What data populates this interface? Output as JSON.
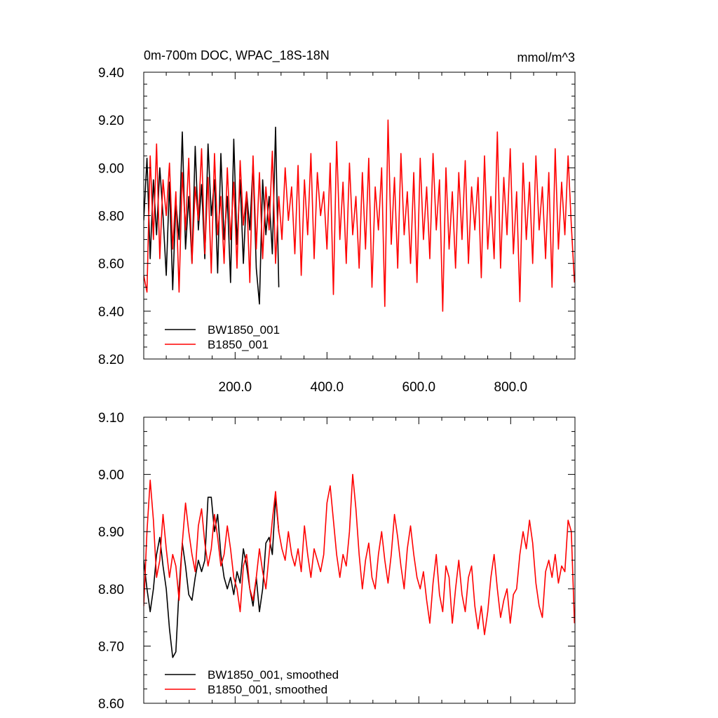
{
  "chart_data": [
    {
      "type": "line",
      "title": "0m-700m DOC, WPAC_18S-18N",
      "units": "mmol/m^3",
      "xlabel": "",
      "ylabel": "",
      "xlim": [
        1,
        940
      ],
      "ylim": [
        8.2,
        9.4
      ],
      "xticks": [
        "200.0",
        "400.0",
        "600.0",
        "800.0"
      ],
      "yticks": [
        "8.20",
        "8.40",
        "8.60",
        "8.80",
        "9.00",
        "9.20",
        "9.40"
      ],
      "legend_position": "bottom-left",
      "series": [
        {
          "name": "BW1850_001",
          "color": "#000000",
          "x": [
            1,
            8,
            15,
            22,
            29,
            36,
            43,
            50,
            57,
            64,
            71,
            78,
            85,
            92,
            99,
            106,
            113,
            120,
            127,
            134,
            141,
            148,
            155,
            162,
            169,
            176,
            183,
            190,
            197,
            204,
            211,
            218,
            225,
            232,
            239,
            246,
            253,
            260,
            267,
            274,
            281,
            288,
            295
          ],
          "values": [
            8.78,
            9.04,
            8.62,
            8.95,
            8.72,
            9.0,
            8.8,
            8.55,
            8.94,
            8.49,
            8.86,
            8.7,
            9.15,
            8.66,
            8.88,
            8.6,
            9.09,
            8.74,
            8.93,
            8.62,
            9.1,
            8.8,
            8.95,
            8.56,
            9.06,
            8.7,
            8.88,
            8.52,
            9.12,
            8.68,
            8.95,
            8.6,
            8.9,
            8.74,
            9.02,
            8.58,
            8.43,
            8.95,
            8.72,
            8.88,
            8.64,
            9.17,
            8.5
          ]
        },
        {
          "name": "B1850_001",
          "color": "#ff0000",
          "x": [
            1,
            8,
            15,
            22,
            29,
            36,
            43,
            50,
            57,
            64,
            71,
            78,
            85,
            92,
            99,
            106,
            113,
            120,
            127,
            134,
            141,
            148,
            155,
            162,
            169,
            176,
            183,
            190,
            197,
            204,
            211,
            218,
            225,
            232,
            239,
            246,
            253,
            260,
            267,
            274,
            281,
            288,
            295,
            302,
            309,
            316,
            323,
            330,
            337,
            344,
            351,
            358,
            365,
            372,
            379,
            386,
            393,
            400,
            407,
            414,
            421,
            428,
            435,
            442,
            449,
            456,
            463,
            470,
            477,
            484,
            491,
            498,
            505,
            512,
            519,
            526,
            533,
            540,
            547,
            554,
            561,
            568,
            575,
            582,
            589,
            596,
            603,
            610,
            617,
            624,
            631,
            638,
            645,
            652,
            659,
            666,
            673,
            680,
            687,
            694,
            701,
            708,
            715,
            722,
            729,
            736,
            743,
            750,
            757,
            764,
            771,
            778,
            785,
            792,
            799,
            806,
            813,
            820,
            827,
            834,
            841,
            848,
            855,
            862,
            869,
            876,
            883,
            890,
            897,
            904,
            911,
            918,
            925,
            932,
            939
          ],
          "values": [
            8.55,
            8.48,
            9.05,
            8.7,
            9.1,
            8.62,
            8.95,
            8.8,
            9.02,
            8.66,
            8.9,
            8.48,
            8.98,
            8.74,
            9.04,
            8.6,
            8.92,
            8.78,
            9.08,
            8.64,
            8.96,
            8.56,
            9.06,
            8.72,
            8.88,
            8.6,
            9.0,
            8.7,
            8.94,
            8.58,
            9.03,
            8.76,
            8.9,
            8.52,
            9.05,
            8.66,
            8.98,
            8.62,
            8.92,
            8.74,
            9.07,
            8.6,
            8.88,
            8.7,
            9.0,
            8.78,
            8.92,
            8.64,
            9.01,
            8.55,
            8.95,
            8.72,
            9.06,
            8.62,
            8.98,
            8.8,
            8.9,
            8.66,
            9.02,
            8.47,
            9.11,
            8.7,
            8.94,
            8.6,
            9.02,
            8.72,
            8.88,
            8.58,
            8.98,
            8.66,
            9.04,
            8.5,
            8.92,
            8.74,
            9.0,
            8.42,
            9.2,
            8.68,
            8.96,
            8.58,
            9.06,
            8.72,
            8.9,
            8.6,
            8.98,
            8.52,
            9.04,
            8.7,
            8.92,
            8.62,
            9.06,
            8.74,
            8.95,
            8.4,
            9.0,
            8.66,
            8.9,
            8.58,
            8.98,
            8.7,
            9.03,
            8.6,
            8.92,
            8.74,
            8.96,
            8.54,
            9.05,
            8.66,
            8.88,
            8.62,
            9.15,
            8.58,
            8.96,
            8.72,
            9.08,
            8.64,
            8.9,
            8.44,
            9.02,
            8.7,
            8.94,
            8.6,
            9.05,
            8.74,
            8.92,
            8.62,
            8.98,
            8.5,
            9.08,
            8.66,
            8.94,
            8.72,
            9.05,
            8.76,
            8.52
          ]
        }
      ]
    },
    {
      "type": "line",
      "title": "",
      "xlabel": "",
      "ylabel": "",
      "xlim": [
        1,
        940
      ],
      "ylim": [
        8.6,
        9.1
      ],
      "yticks": [
        "8.60",
        "8.70",
        "8.80",
        "8.90",
        "9.00",
        "9.10"
      ],
      "legend_position": "bottom-left",
      "series": [
        {
          "name": "BW1850_001, smoothed",
          "color": "#000000",
          "x": [
            1,
            8,
            15,
            22,
            29,
            36,
            43,
            50,
            57,
            64,
            71,
            78,
            85,
            92,
            99,
            106,
            113,
            120,
            127,
            134,
            141,
            148,
            155,
            162,
            169,
            176,
            183,
            190,
            197,
            204,
            211,
            218,
            225,
            232,
            239,
            246,
            253,
            260,
            267,
            274,
            281,
            288,
            295
          ],
          "values": [
            8.85,
            8.8,
            8.76,
            8.8,
            8.86,
            8.89,
            8.84,
            8.8,
            8.73,
            8.68,
            8.69,
            8.8,
            8.88,
            8.84,
            8.79,
            8.78,
            8.82,
            8.85,
            8.83,
            8.85,
            8.96,
            8.96,
            8.9,
            8.93,
            8.86,
            8.82,
            8.8,
            8.82,
            8.79,
            8.83,
            8.81,
            8.87,
            8.84,
            8.8,
            8.77,
            8.82,
            8.76,
            8.8,
            8.88,
            8.89,
            8.86,
            8.96,
            8.9
          ]
        },
        {
          "name": "B1850_001, smoothed",
          "color": "#ff0000",
          "x": [
            1,
            8,
            15,
            22,
            29,
            36,
            43,
            50,
            57,
            64,
            71,
            78,
            85,
            92,
            99,
            106,
            113,
            120,
            127,
            134,
            141,
            148,
            155,
            162,
            169,
            176,
            183,
            190,
            197,
            204,
            211,
            218,
            225,
            232,
            239,
            246,
            253,
            260,
            267,
            274,
            281,
            288,
            295,
            302,
            309,
            316,
            323,
            330,
            337,
            344,
            351,
            358,
            365,
            372,
            379,
            386,
            393,
            400,
            407,
            414,
            421,
            428,
            435,
            442,
            449,
            456,
            463,
            470,
            477,
            484,
            491,
            498,
            505,
            512,
            519,
            526,
            533,
            540,
            547,
            554,
            561,
            568,
            575,
            582,
            589,
            596,
            603,
            610,
            617,
            624,
            631,
            638,
            645,
            652,
            659,
            666,
            673,
            680,
            687,
            694,
            701,
            708,
            715,
            722,
            729,
            736,
            743,
            750,
            757,
            764,
            771,
            778,
            785,
            792,
            799,
            806,
            813,
            820,
            827,
            834,
            841,
            848,
            855,
            862,
            869,
            876,
            883,
            890,
            897,
            904,
            911,
            918,
            925,
            932,
            939
          ],
          "values": [
            8.77,
            8.9,
            8.99,
            8.92,
            8.82,
            8.85,
            8.93,
            8.87,
            8.82,
            8.86,
            8.84,
            8.78,
            8.88,
            8.95,
            8.9,
            8.86,
            8.83,
            8.91,
            8.94,
            8.88,
            8.84,
            8.87,
            8.93,
            8.89,
            8.84,
            8.86,
            8.91,
            8.87,
            8.82,
            8.8,
            8.76,
            8.84,
            8.86,
            8.8,
            8.78,
            8.82,
            8.87,
            8.83,
            8.8,
            8.86,
            8.92,
            8.97,
            8.9,
            8.87,
            8.85,
            8.9,
            8.86,
            8.84,
            8.87,
            8.83,
            8.91,
            8.86,
            8.82,
            8.87,
            8.85,
            8.83,
            8.86,
            8.95,
            8.98,
            8.92,
            8.86,
            8.82,
            8.86,
            8.84,
            8.9,
            9.0,
            8.94,
            8.86,
            8.8,
            8.85,
            8.88,
            8.82,
            8.8,
            8.86,
            8.9,
            8.85,
            8.81,
            8.86,
            8.93,
            8.89,
            8.84,
            8.8,
            8.87,
            8.91,
            8.86,
            8.82,
            8.8,
            8.83,
            8.78,
            8.74,
            8.81,
            8.86,
            8.79,
            8.76,
            8.84,
            8.82,
            8.74,
            8.8,
            8.85,
            8.79,
            8.76,
            8.82,
            8.84,
            8.77,
            8.73,
            8.77,
            8.72,
            8.76,
            8.82,
            8.86,
            8.8,
            8.75,
            8.78,
            8.8,
            8.74,
            8.79,
            8.8,
            8.86,
            8.9,
            8.87,
            8.92,
            8.88,
            8.81,
            8.77,
            8.75,
            8.83,
            8.85,
            8.82,
            8.86,
            8.81,
            8.84,
            8.83,
            8.92,
            8.9,
            8.74
          ]
        }
      ]
    }
  ]
}
